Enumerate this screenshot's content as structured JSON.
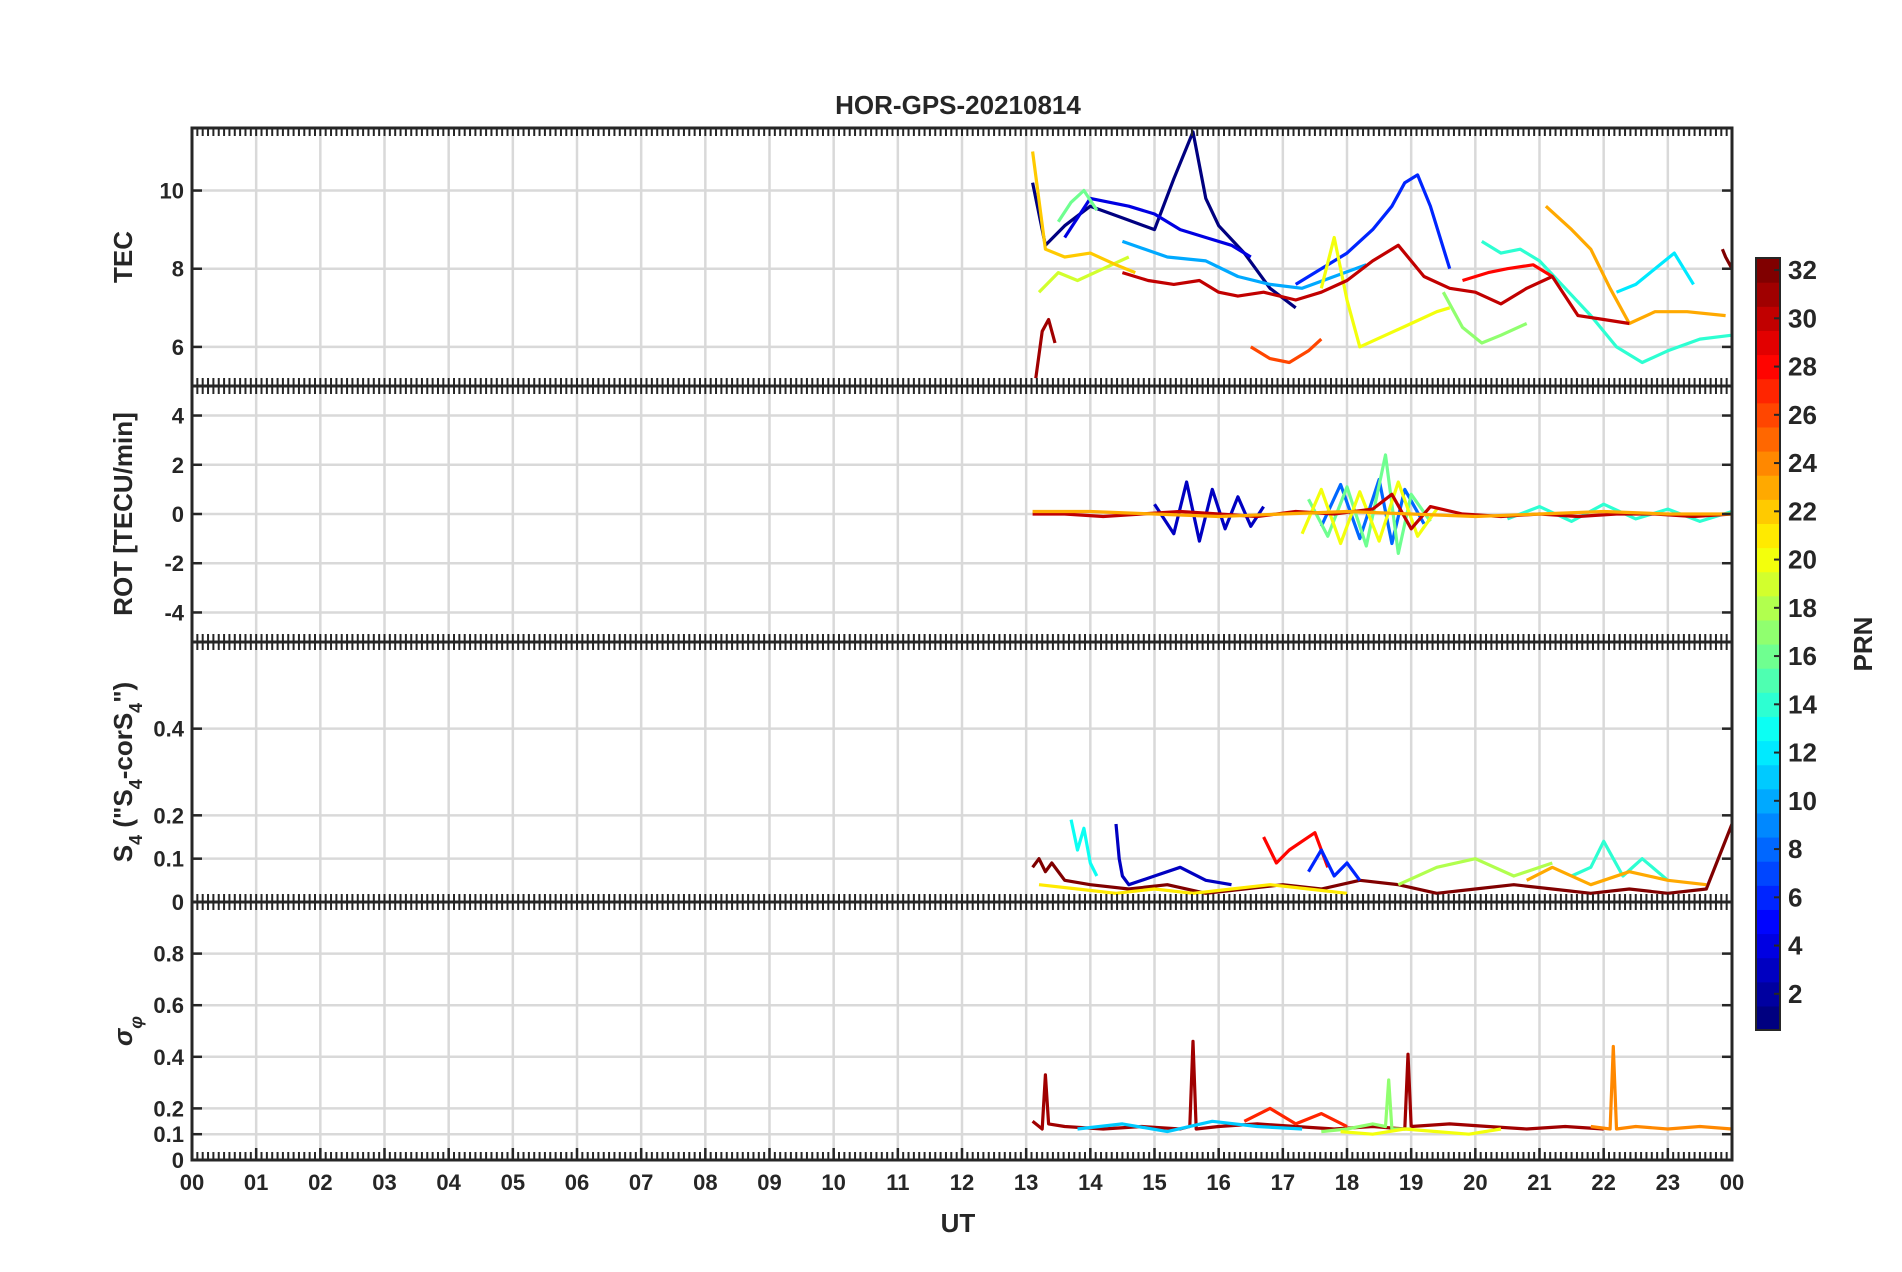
{
  "chart_data": {
    "type": "line",
    "title": "HOR-GPS-20210814",
    "xlabel": "UT",
    "x_tick_labels": [
      "00",
      "01",
      "02",
      "03",
      "04",
      "05",
      "06",
      "07",
      "08",
      "09",
      "10",
      "11",
      "12",
      "13",
      "14",
      "15",
      "16",
      "17",
      "18",
      "19",
      "20",
      "21",
      "22",
      "23",
      "00"
    ],
    "xlim": [
      0,
      24
    ],
    "grid": true,
    "colormap": "jet",
    "colorbar": {
      "label": "PRN",
      "range": [
        1,
        32
      ],
      "tick_labels": [
        "2",
        "4",
        "6",
        "8",
        "10",
        "12",
        "14",
        "16",
        "18",
        "20",
        "22",
        "24",
        "26",
        "28",
        "30",
        "32"
      ],
      "placement": "right"
    },
    "panels": [
      {
        "id": "tec",
        "ylabel": "TEC",
        "ylim": [
          5,
          11.6
        ],
        "yticks": [
          6,
          8,
          10
        ],
        "ytick_labels": [
          "6",
          "8",
          "10"
        ],
        "series": [
          {
            "prn": 1,
            "x": [
              13.1,
              13.3,
              13.6,
              14.0,
              14.5,
              15.0,
              15.3,
              15.6,
              15.8,
              16.0,
              16.4,
              16.8,
              17.2
            ],
            "y": [
              10.2,
              8.6,
              9.1,
              9.6,
              9.3,
              9.0,
              10.3,
              11.5,
              9.8,
              9.1,
              8.4,
              7.5,
              7.0
            ]
          },
          {
            "prn": 4,
            "x": [
              13.6,
              14.0,
              14.6,
              15.0,
              15.4,
              15.8,
              16.2,
              16.5
            ],
            "y": [
              8.8,
              9.8,
              9.6,
              9.4,
              9.0,
              8.8,
              8.6,
              8.3
            ]
          },
          {
            "prn": 6,
            "x": [
              17.2,
              17.6,
              18.0,
              18.4,
              18.7,
              18.9,
              19.1,
              19.3,
              19.6
            ],
            "y": [
              7.6,
              8.0,
              8.4,
              9.0,
              9.6,
              10.2,
              10.4,
              9.6,
              8.0
            ]
          },
          {
            "prn": 10,
            "x": [
              14.5,
              15.2,
              15.8,
              16.3,
              16.8,
              17.3,
              17.8,
              18.3
            ],
            "y": [
              8.7,
              8.3,
              8.2,
              7.8,
              7.6,
              7.5,
              7.8,
              8.1
            ]
          },
          {
            "prn": 12,
            "x": [
              22.2,
              22.5,
              22.8,
              23.1,
              23.4
            ],
            "y": [
              7.4,
              7.6,
              8.0,
              8.4,
              7.6
            ]
          },
          {
            "prn": 14,
            "x": [
              20.1,
              20.4,
              20.7,
              21.0,
              21.4,
              21.8,
              22.2,
              22.6,
              23.0,
              23.5,
              24.0
            ],
            "y": [
              8.7,
              8.4,
              8.5,
              8.2,
              7.5,
              6.8,
              6.0,
              5.6,
              5.9,
              6.2,
              6.3
            ]
          },
          {
            "prn": 16,
            "x": [
              13.5,
              13.7,
              13.9,
              14.1
            ],
            "y": [
              9.2,
              9.7,
              10.0,
              9.5
            ]
          },
          {
            "prn": 17,
            "x": [
              19.5,
              19.8,
              20.1,
              20.4,
              20.8
            ],
            "y": [
              7.4,
              6.5,
              6.1,
              6.3,
              6.6
            ]
          },
          {
            "prn": 19,
            "x": [
              13.2,
              13.5,
              13.8,
              14.2,
              14.6
            ],
            "y": [
              7.4,
              7.9,
              7.7,
              8.0,
              8.3
            ]
          },
          {
            "prn": 20,
            "x": [
              17.6,
              17.8,
              18.0,
              18.2,
              18.6,
              19.0,
              19.4,
              19.6
            ],
            "y": [
              7.5,
              8.8,
              7.2,
              6.0,
              6.3,
              6.6,
              6.9,
              7.0
            ]
          },
          {
            "prn": 22,
            "x": [
              13.1,
              13.3,
              13.6,
              14.0,
              14.4,
              14.7
            ],
            "y": [
              11.0,
              8.5,
              8.3,
              8.4,
              8.1,
              7.9
            ]
          },
          {
            "prn": 23,
            "x": [
              21.1,
              21.5,
              21.8,
              22.1,
              22.4,
              22.8,
              23.3,
              23.9
            ],
            "y": [
              9.6,
              9.0,
              8.5,
              7.5,
              6.6,
              6.9,
              6.9,
              6.8
            ]
          },
          {
            "prn": 26,
            "x": [
              16.5,
              16.8,
              17.1,
              17.4,
              17.6
            ],
            "y": [
              6.0,
              5.7,
              5.6,
              5.9,
              6.2
            ]
          },
          {
            "prn": 28,
            "x": [
              19.8,
              20.2,
              20.5,
              20.9,
              21.2
            ],
            "y": [
              7.7,
              7.9,
              8.0,
              8.1,
              7.8
            ]
          },
          {
            "prn": 30,
            "x": [
              14.5,
              14.9,
              15.3,
              15.7,
              16.0,
              16.3,
              16.7,
              17.2,
              17.6,
              18.0,
              18.4,
              18.8,
              19.2,
              19.6,
              20.0,
              20.4,
              20.8,
              21.2,
              21.6,
              22.0,
              22.4
            ],
            "y": [
              7.9,
              7.7,
              7.6,
              7.7,
              7.4,
              7.3,
              7.4,
              7.2,
              7.4,
              7.7,
              8.2,
              8.6,
              7.8,
              7.5,
              7.4,
              7.1,
              7.5,
              7.8,
              6.8,
              6.7,
              6.6
            ]
          },
          {
            "prn": 31,
            "x": [
              13.15,
              13.25,
              13.35,
              13.45
            ],
            "y": [
              5.2,
              6.4,
              6.7,
              6.1
            ]
          },
          {
            "prn": 32,
            "x": [
              23.85,
              23.9,
              24.0
            ],
            "y": [
              8.5,
              8.3,
              8.0
            ]
          }
        ]
      },
      {
        "id": "rot",
        "ylabel": "ROT [TECU/min]",
        "ylim": [
          -5.2,
          5.2
        ],
        "yticks": [
          -4,
          -2,
          0,
          2,
          4
        ],
        "ytick_labels": [
          "-4",
          "-2",
          "0",
          "2",
          "4"
        ],
        "series": [
          {
            "prn": 3,
            "x": [
              15.0,
              15.3,
              15.5,
              15.7,
              15.9,
              16.1,
              16.3,
              16.5,
              16.7
            ],
            "y": [
              0.4,
              -0.8,
              1.3,
              -1.1,
              1.0,
              -0.6,
              0.7,
              -0.5,
              0.3
            ]
          },
          {
            "prn": 8,
            "x": [
              17.6,
              17.9,
              18.2,
              18.5,
              18.7,
              18.9,
              19.2
            ],
            "y": [
              -0.5,
              1.2,
              -1.0,
              1.4,
              -1.2,
              1.0,
              -0.4
            ]
          },
          {
            "prn": 16,
            "x": [
              17.4,
              17.7,
              18.0,
              18.3,
              18.6,
              18.8,
              19.0,
              19.3
            ],
            "y": [
              0.6,
              -0.9,
              1.1,
              -1.3,
              2.4,
              -1.6,
              0.8,
              -0.3
            ]
          },
          {
            "prn": 20,
            "x": [
              17.3,
              17.6,
              17.9,
              18.2,
              18.5,
              18.8,
              19.1,
              19.4
            ],
            "y": [
              -0.8,
              1.0,
              -1.2,
              0.9,
              -1.1,
              1.3,
              -0.9,
              0.2
            ]
          },
          {
            "prn": 14,
            "x": [
              20.5,
              21.0,
              21.5,
              22.0,
              22.5,
              23.0,
              23.5,
              24.0
            ],
            "y": [
              -0.2,
              0.3,
              -0.3,
              0.4,
              -0.2,
              0.2,
              -0.3,
              0.1
            ]
          },
          {
            "prn": 30,
            "x": [
              13.1,
              13.6,
              14.2,
              14.8,
              15.4,
              16.0,
              16.6,
              17.2,
              17.8,
              18.4,
              18.7,
              19.0,
              19.3,
              19.8,
              20.4,
              21.0,
              21.6,
              22.2,
              22.8,
              23.4,
              24.0
            ],
            "y": [
              0.0,
              0.0,
              -0.1,
              0.0,
              0.1,
              0.0,
              -0.1,
              0.1,
              0.0,
              0.2,
              0.8,
              -0.6,
              0.3,
              0.0,
              -0.1,
              0.0,
              -0.1,
              0.0,
              0.0,
              -0.1,
              0.0
            ]
          },
          {
            "prn": 23,
            "x": [
              13.1,
              14.0,
              15.0,
              16.0,
              17.0,
              18.0,
              19.0,
              20.0,
              21.0,
              22.0,
              23.0,
              24.0
            ],
            "y": [
              0.1,
              0.1,
              0.0,
              -0.1,
              0.0,
              0.1,
              0.0,
              -0.1,
              0.0,
              0.1,
              0.0,
              0.0
            ]
          }
        ]
      },
      {
        "id": "s4",
        "ylabel": "S4 (\"S4-corS4\")",
        "ylim": [
          0,
          0.6
        ],
        "yticks": [
          0,
          0.1,
          0.2,
          0.4
        ],
        "ytick_labels": [
          "0",
          "0.1",
          "0.2",
          "0.4"
        ],
        "series": [
          {
            "prn": 32,
            "x": [
              13.1,
              13.2,
              13.3,
              13.4,
              13.6,
              14.0,
              14.6,
              15.2,
              15.8,
              16.4,
              17.0,
              17.6,
              18.2,
              18.8,
              19.4,
              20.0,
              20.6,
              21.2,
              21.8,
              22.4,
              23.0,
              23.6,
              24.0
            ],
            "y": [
              0.08,
              0.1,
              0.07,
              0.09,
              0.05,
              0.04,
              0.03,
              0.04,
              0.02,
              0.03,
              0.04,
              0.03,
              0.05,
              0.04,
              0.02,
              0.03,
              0.04,
              0.03,
              0.02,
              0.03,
              0.02,
              0.03,
              0.18
            ]
          },
          {
            "prn": 13,
            "x": [
              13.7,
              13.8,
              13.9,
              14.0,
              14.1
            ],
            "y": [
              0.19,
              0.12,
              0.17,
              0.09,
              0.06
            ]
          },
          {
            "prn": 3,
            "x": [
              14.4,
              14.45,
              14.5,
              14.6,
              15.0,
              15.4,
              15.8,
              16.2
            ],
            "y": [
              0.18,
              0.1,
              0.06,
              0.04,
              0.06,
              0.08,
              0.05,
              0.04
            ]
          },
          {
            "prn": 28,
            "x": [
              16.7,
              16.9,
              17.1,
              17.3,
              17.5,
              17.7
            ],
            "y": [
              0.15,
              0.09,
              0.12,
              0.14,
              0.16,
              0.08
            ]
          },
          {
            "prn": 6,
            "x": [
              17.4,
              17.6,
              17.8,
              18.0,
              18.2
            ],
            "y": [
              0.07,
              0.12,
              0.06,
              0.09,
              0.05
            ]
          },
          {
            "prn": 18,
            "x": [
              18.8,
              19.4,
              20.0,
              20.6,
              21.2
            ],
            "y": [
              0.04,
              0.08,
              0.1,
              0.06,
              0.09
            ]
          },
          {
            "prn": 14,
            "x": [
              21.5,
              21.8,
              22.0,
              22.3,
              22.6,
              23.0
            ],
            "y": [
              0.06,
              0.08,
              0.14,
              0.06,
              0.1,
              0.05
            ]
          },
          {
            "prn": 23,
            "x": [
              20.8,
              21.2,
              21.8,
              22.4,
              23.0,
              23.6
            ],
            "y": [
              0.05,
              0.08,
              0.04,
              0.07,
              0.05,
              0.04
            ]
          },
          {
            "prn": 21,
            "x": [
              13.2,
              13.8,
              14.4,
              15.0,
              15.6,
              16.2,
              16.8,
              17.4,
              18.0
            ],
            "y": [
              0.04,
              0.03,
              0.02,
              0.03,
              0.02,
              0.03,
              0.04,
              0.03,
              0.02
            ]
          }
        ]
      },
      {
        "id": "sigma",
        "ylabel": "σφ",
        "ylim": [
          0,
          1.0
        ],
        "yticks": [
          0,
          0.1,
          0.2,
          0.4,
          0.6,
          0.8
        ],
        "ytick_labels": [
          "0",
          "0.1",
          "0.2",
          "0.4",
          "0.6",
          "0.8"
        ],
        "series": [
          {
            "prn": 31,
            "x": [
              13.1,
              13.25,
              13.3,
              13.35,
              13.6,
              14.2,
              14.8,
              15.4,
              15.55,
              15.6,
              15.65,
              16.0,
              16.6,
              17.2,
              17.8,
              18.4,
              18.9,
              18.95,
              19.0,
              19.6,
              20.2,
              20.8,
              21.4,
              22.0
            ],
            "y": [
              0.15,
              0.12,
              0.33,
              0.14,
              0.13,
              0.12,
              0.13,
              0.12,
              0.13,
              0.46,
              0.12,
              0.13,
              0.14,
              0.13,
              0.12,
              0.13,
              0.12,
              0.41,
              0.13,
              0.14,
              0.13,
              0.12,
              0.13,
              0.12
            ]
          },
          {
            "prn": 24,
            "x": [
              21.8,
              22.1,
              22.15,
              22.2,
              22.5,
              23.0,
              23.5,
              24.0
            ],
            "y": [
              0.13,
              0.12,
              0.44,
              0.12,
              0.13,
              0.12,
              0.13,
              0.12
            ]
          },
          {
            "prn": 17,
            "x": [
              17.6,
              18.0,
              18.4,
              18.6,
              18.65,
              18.7,
              19.0
            ],
            "y": [
              0.11,
              0.12,
              0.14,
              0.13,
              0.31,
              0.12,
              0.12
            ]
          },
          {
            "prn": 11,
            "x": [
              13.8,
              14.5,
              15.2,
              15.9,
              16.6,
              17.3
            ],
            "y": [
              0.12,
              0.14,
              0.11,
              0.15,
              0.13,
              0.12
            ]
          },
          {
            "prn": 27,
            "x": [
              16.4,
              16.8,
              17.2,
              17.6,
              18.0
            ],
            "y": [
              0.15,
              0.2,
              0.14,
              0.18,
              0.13
            ]
          },
          {
            "prn": 20,
            "x": [
              17.9,
              18.4,
              18.9,
              19.4,
              19.9,
              20.4
            ],
            "y": [
              0.11,
              0.1,
              0.12,
              0.11,
              0.1,
              0.12
            ]
          }
        ]
      }
    ]
  }
}
